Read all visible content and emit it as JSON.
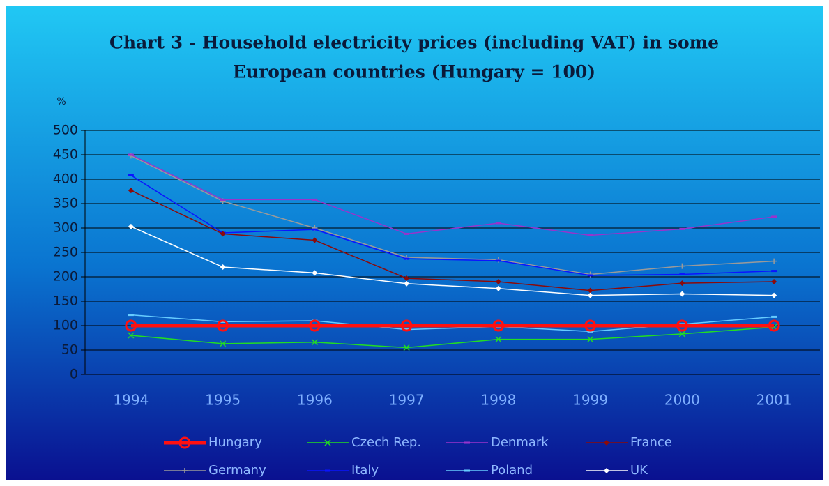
{
  "chart_data": {
    "type": "line",
    "title": "Chart 3 - Household electricity prices (including VAT) in some",
    "subtitle": "European countries (Hungary = 100)",
    "y_label": "%",
    "categories": [
      "1994",
      "1995",
      "1996",
      "1997",
      "1998",
      "1999",
      "2000",
      "2001"
    ],
    "ylim": [
      0,
      500
    ],
    "yticks": [
      0,
      50,
      100,
      150,
      200,
      250,
      300,
      350,
      400,
      450,
      500
    ],
    "grid": true,
    "legend": "bottom",
    "series": [
      {
        "name": "Hungary",
        "color": "#ff1010",
        "marker": "circle",
        "values": [
          100,
          100,
          100,
          100,
          100,
          100,
          100,
          100
        ]
      },
      {
        "name": "Czech Rep.",
        "color": "#22dd22",
        "marker": "x",
        "values": [
          80,
          63,
          66,
          55,
          72,
          72,
          83,
          97
        ]
      },
      {
        "name": "Denmark",
        "color": "#9933cc",
        "marker": "dash",
        "values": [
          450,
          358,
          358,
          288,
          310,
          285,
          298,
          323
        ]
      },
      {
        "name": "France",
        "color": "#8b0a0a",
        "marker": "diamond",
        "values": [
          377,
          288,
          275,
          197,
          190,
          172,
          187,
          190
        ]
      },
      {
        "name": "Germany",
        "color": "#9a9a9a",
        "marker": "plus",
        "values": [
          448,
          355,
          300,
          240,
          235,
          205,
          222,
          232
        ]
      },
      {
        "name": "Italy",
        "color": "#0a14ff",
        "marker": "dash",
        "values": [
          408,
          290,
          297,
          237,
          233,
          203,
          205,
          212
        ]
      },
      {
        "name": "Poland",
        "color": "#66ccff",
        "marker": "dash",
        "values": [
          122,
          108,
          110,
          92,
          98,
          88,
          103,
          118
        ]
      },
      {
        "name": "UK",
        "color": "#ffffff",
        "marker": "diamond",
        "values": [
          303,
          220,
          208,
          186,
          176,
          162,
          165,
          162
        ]
      }
    ]
  }
}
